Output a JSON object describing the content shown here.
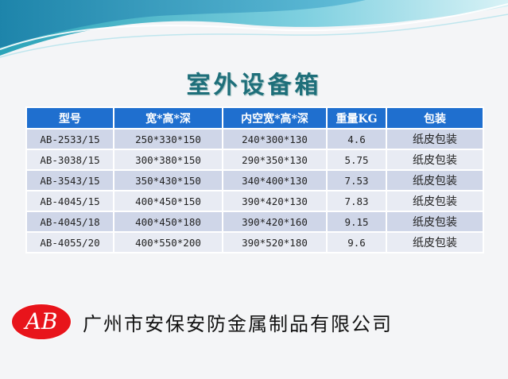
{
  "title": "室外设备箱",
  "table": {
    "headers": [
      "型号",
      "宽*高*深",
      "内空宽*高*深",
      "重量KG",
      "包装"
    ],
    "rows": [
      [
        "AB-2533/15",
        "250*330*150",
        "240*300*130",
        "4.6",
        "纸皮包装"
      ],
      [
        "AB-3038/15",
        "300*380*150",
        "290*350*130",
        "5.75",
        "纸皮包装"
      ],
      [
        "AB-3543/15",
        "350*430*150",
        "340*400*130",
        "7.53",
        "纸皮包装"
      ],
      [
        "AB-4045/15",
        "400*450*150",
        "390*420*130",
        "7.83",
        "纸皮包装"
      ],
      [
        "AB-4045/18",
        "400*450*180",
        "390*420*160",
        "9.15",
        "纸皮包装"
      ],
      [
        "AB-4055/20",
        "400*550*200",
        "390*520*180",
        "9.6",
        "纸皮包装"
      ]
    ]
  },
  "footer": {
    "logo_text": "AB",
    "company": "广州市安保安防金属制品有限公司"
  },
  "colors": {
    "header_bg": "#1f6fcf",
    "title": "#1e6f7a",
    "logo": "#e8141b"
  }
}
